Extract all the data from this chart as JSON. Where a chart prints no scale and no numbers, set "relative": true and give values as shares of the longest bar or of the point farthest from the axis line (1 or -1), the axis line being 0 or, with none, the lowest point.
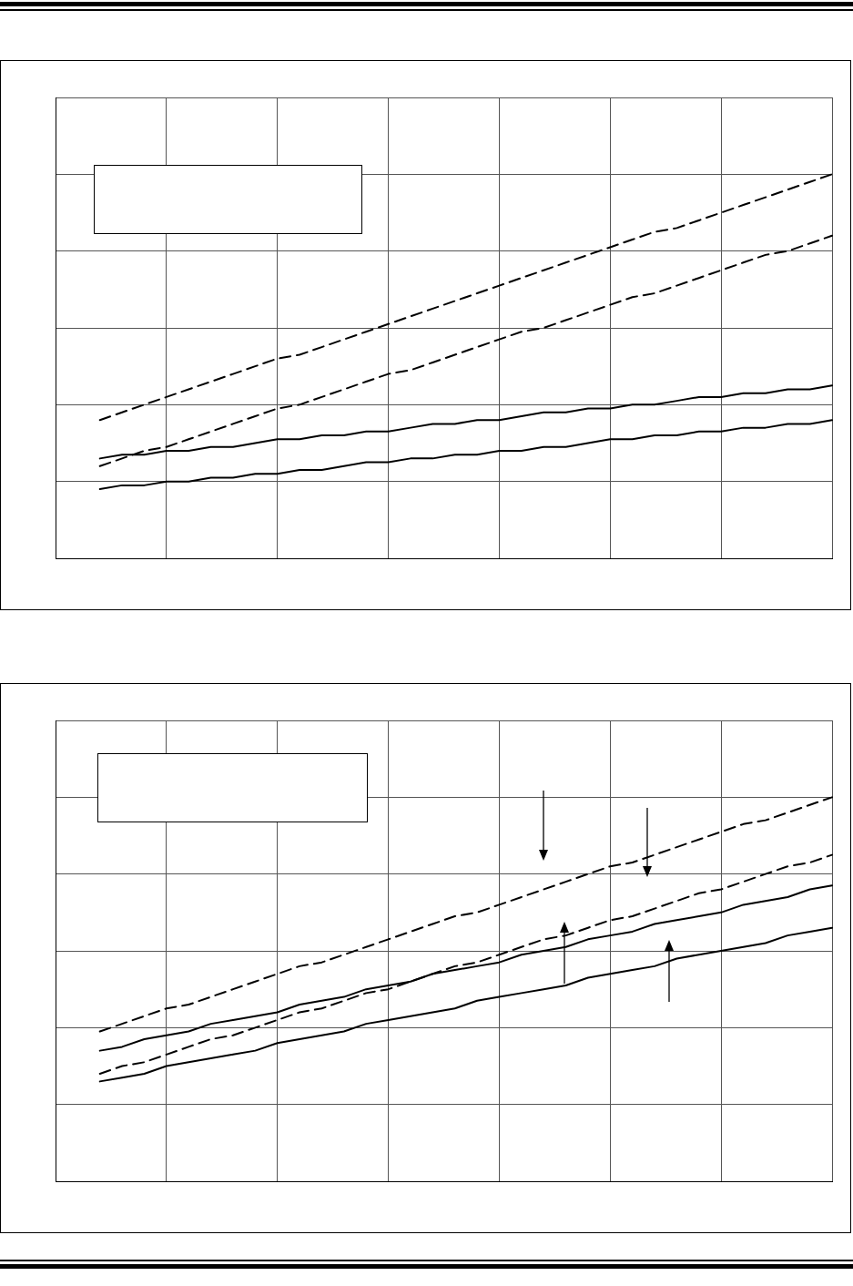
{
  "chart_data": [
    {
      "type": "line",
      "relative": true,
      "categories": [
        null,
        null,
        null,
        null,
        null,
        null,
        null,
        null,
        null,
        null,
        null,
        null,
        null,
        null,
        null,
        null,
        null,
        null,
        null,
        null,
        null,
        null,
        null,
        null,
        null,
        null,
        null,
        null,
        null,
        null,
        null,
        null,
        null,
        null,
        null,
        null
      ],
      "tick_labels": false,
      "grid": true,
      "legend": false,
      "marker": "none",
      "series": [
        {
          "color": "#000000",
          "line_style": "dashed",
          "values": [
            null,
            null,
            0.36,
            0.38,
            0.4,
            0.42,
            0.44,
            0.46,
            0.48,
            0.5,
            0.52,
            0.53,
            0.55,
            0.57,
            0.59,
            0.61,
            0.63,
            0.65,
            0.67,
            0.69,
            0.71,
            0.73,
            0.75,
            0.77,
            0.79,
            0.81,
            0.83,
            0.85,
            0.86,
            0.88,
            0.9,
            0.92,
            0.94,
            0.96,
            0.98,
            1
          ]
        },
        {
          "color": "#000000",
          "line_style": "dashed",
          "values": [
            null,
            null,
            0.24,
            0.26,
            0.28,
            0.29,
            0.31,
            0.33,
            0.35,
            0.37,
            0.39,
            0.4,
            0.42,
            0.44,
            0.46,
            0.48,
            0.49,
            0.51,
            0.53,
            0.55,
            0.57,
            0.59,
            0.6,
            0.62,
            0.64,
            0.66,
            0.68,
            0.69,
            0.71,
            0.73,
            0.75,
            0.77,
            0.79,
            0.8,
            0.82,
            0.84
          ]
        },
        {
          "color": "#000000",
          "line_style": "solid",
          "values": [
            null,
            null,
            0.26,
            0.27,
            0.27,
            0.28,
            0.28,
            0.29,
            0.29,
            0.3,
            0.31,
            0.31,
            0.32,
            0.32,
            0.33,
            0.33,
            0.34,
            0.35,
            0.35,
            0.36,
            0.36,
            0.37,
            0.38,
            0.38,
            0.39,
            0.39,
            0.4,
            0.4,
            0.41,
            0.42,
            0.42,
            0.43,
            0.43,
            0.44,
            0.44,
            0.45
          ]
        },
        {
          "color": "#000000",
          "line_style": "solid",
          "values": [
            null,
            null,
            0.18,
            0.19,
            0.19,
            0.2,
            0.2,
            0.21,
            0.21,
            0.22,
            0.22,
            0.23,
            0.23,
            0.24,
            0.25,
            0.25,
            0.26,
            0.26,
            0.27,
            0.27,
            0.28,
            0.28,
            0.29,
            0.29,
            0.3,
            0.31,
            0.31,
            0.32,
            0.32,
            0.33,
            0.33,
            0.34,
            0.34,
            0.35,
            0.35,
            0.36
          ]
        }
      ]
    },
    {
      "type": "line",
      "relative": true,
      "categories": [
        null,
        null,
        null,
        null,
        null,
        null,
        null,
        null,
        null,
        null,
        null,
        null,
        null,
        null,
        null,
        null,
        null,
        null,
        null,
        null,
        null,
        null,
        null,
        null,
        null,
        null,
        null,
        null,
        null,
        null,
        null,
        null,
        null,
        null,
        null,
        null
      ],
      "tick_labels": false,
      "grid": true,
      "legend": false,
      "marker": "none",
      "series": [
        {
          "color": "#000000",
          "line_style": "dashed",
          "values": [
            null,
            null,
            0.39,
            0.41,
            0.43,
            0.45,
            0.46,
            0.48,
            0.5,
            0.52,
            0.54,
            0.56,
            0.57,
            0.59,
            0.61,
            0.63,
            0.65,
            0.67,
            0.69,
            0.7,
            0.72,
            0.74,
            0.76,
            0.78,
            0.8,
            0.82,
            0.83,
            0.85,
            0.87,
            0.89,
            0.91,
            0.93,
            0.94,
            0.96,
            0.98,
            1
          ]
        },
        {
          "color": "#000000",
          "line_style": "dashed",
          "values": [
            null,
            null,
            0.28,
            0.3,
            0.31,
            0.33,
            0.35,
            0.37,
            0.38,
            0.4,
            0.42,
            0.44,
            0.45,
            0.47,
            0.49,
            0.5,
            0.52,
            0.54,
            0.56,
            0.57,
            0.59,
            0.61,
            0.63,
            0.64,
            0.66,
            0.68,
            0.69,
            0.71,
            0.73,
            0.75,
            0.76,
            0.78,
            0.8,
            0.82,
            0.83,
            0.85
          ]
        },
        {
          "color": "#000000",
          "line_style": "solid",
          "values": [
            null,
            null,
            0.34,
            0.35,
            0.37,
            0.38,
            0.39,
            0.41,
            0.42,
            0.43,
            0.44,
            0.46,
            0.47,
            0.48,
            0.5,
            0.51,
            0.52,
            0.54,
            0.55,
            0.56,
            0.57,
            0.59,
            0.6,
            0.61,
            0.63,
            0.64,
            0.65,
            0.67,
            0.68,
            0.69,
            0.7,
            0.72,
            0.73,
            0.74,
            0.76,
            0.77
          ]
        },
        {
          "color": "#000000",
          "line_style": "solid",
          "values": [
            null,
            null,
            0.26,
            0.27,
            0.28,
            0.3,
            0.31,
            0.32,
            0.33,
            0.34,
            0.36,
            0.37,
            0.38,
            0.39,
            0.41,
            0.42,
            0.43,
            0.44,
            0.45,
            0.47,
            0.48,
            0.49,
            0.5,
            0.51,
            0.53,
            0.54,
            0.55,
            0.56,
            0.58,
            0.59,
            0.6,
            0.61,
            0.62,
            0.64,
            0.65,
            0.66
          ]
        }
      ]
    }
  ]
}
